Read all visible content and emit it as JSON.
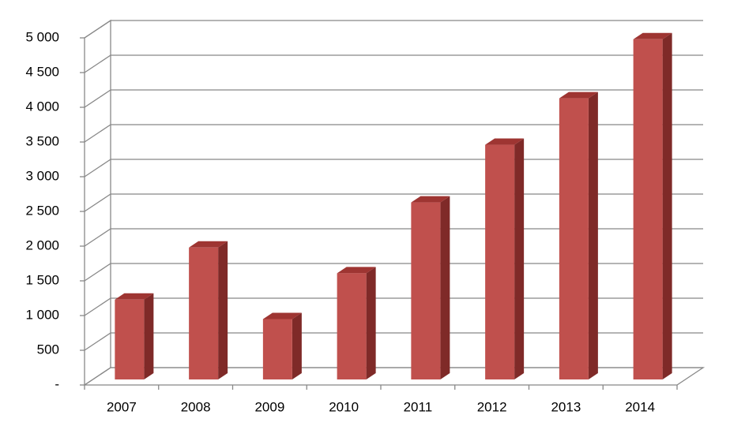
{
  "chart_data": {
    "type": "bar3d",
    "categories": [
      "2007",
      "2008",
      "2009",
      "2010",
      "2011",
      "2012",
      "2013",
      "2014"
    ],
    "values": [
      1150,
      1900,
      870,
      1530,
      2550,
      3380,
      4050,
      4900
    ],
    "color": "#c0504d",
    "ylim": [
      0,
      5000
    ],
    "yticks": [
      {
        "value": 0,
        "label": "-"
      },
      500,
      {
        "value": 1000,
        "label": "1 000"
      },
      {
        "value": 1500,
        "label": "1 500"
      },
      {
        "value": 2000,
        "label": "2 000"
      },
      {
        "value": 2500,
        "label": "2 500"
      },
      {
        "value": 3000,
        "label": "3 000"
      },
      {
        "value": 3500,
        "label": "3 500"
      },
      {
        "value": 4000,
        "label": "4 000"
      },
      {
        "value": 4500,
        "label": "4 500"
      },
      {
        "value": 5000,
        "label": "5 000"
      }
    ],
    "grid": true
  }
}
